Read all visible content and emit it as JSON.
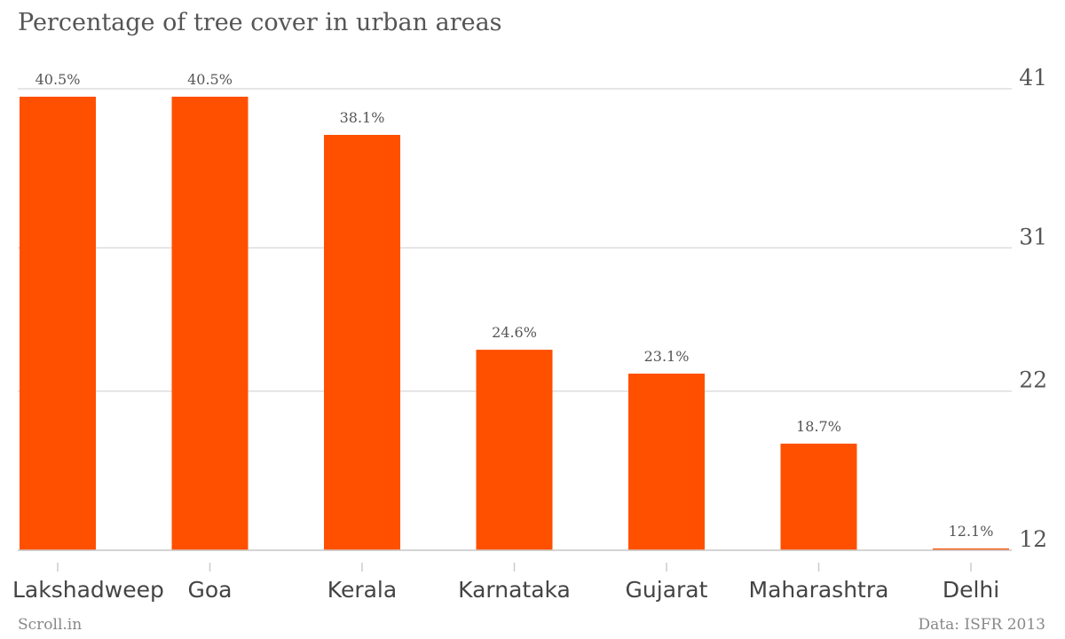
{
  "page": {
    "title": "Percentage of tree cover in urban areas",
    "source_left": "Scroll.in",
    "source_right": "Data: ISFR 2013"
  },
  "chart_data": {
    "type": "bar",
    "title": "Percentage of tree cover in urban areas",
    "categories": [
      "Lakshadweep",
      "Goa",
      "Kerala",
      "Karnataka",
      "Gujarat",
      "Maharashtra",
      "Delhi"
    ],
    "values": [
      40.5,
      40.5,
      38.1,
      24.6,
      23.1,
      18.7,
      12.1
    ],
    "data_labels": [
      "40.5%",
      "40.5%",
      "38.1%",
      "24.6%",
      "23.1%",
      "18.7%",
      "12.1%"
    ],
    "y_ticks": [
      12,
      22,
      31,
      41
    ],
    "ylim": [
      12,
      41
    ],
    "y_axis_side": "right",
    "grid": true,
    "bar_color": "#ff5000",
    "xlabel": "",
    "ylabel": ""
  }
}
